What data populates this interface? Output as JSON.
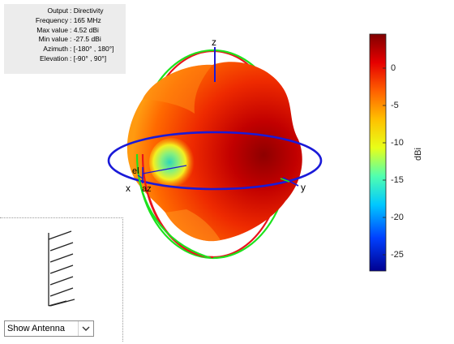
{
  "info": {
    "rows": [
      {
        "key": "Output",
        "value": ": Directivity"
      },
      {
        "key": "Frequency",
        "value": ": 165 MHz"
      },
      {
        "key": "Max value",
        "value": ": 4.52 dBi"
      },
      {
        "key": "Min value",
        "value": ": -27.5 dBi"
      },
      {
        "key": "Azimuth",
        "value": ": [-180° , 180°]"
      },
      {
        "key": "Elevation",
        "value": ": [-90° , 90°]"
      }
    ]
  },
  "axes": {
    "x_label": "x",
    "y_label": "y",
    "z_label": "z",
    "az_label": "az",
    "el_label": "el"
  },
  "colorbar": {
    "ticks": [
      "0",
      "-5",
      "-10",
      "-15",
      "-20",
      "-25"
    ],
    "label": "dBi",
    "max": 4.52,
    "min": -27.5
  },
  "colors": {
    "azimuth_ring": "#1a1ad8",
    "elevation_ring_red": "#e8141c",
    "elevation_ring_green": "#1de21d",
    "axis_line": "#1a1ad8"
  },
  "controls": {
    "select_value": "Show Antenna",
    "dropdown_icon": "chevron-down-icon"
  }
}
